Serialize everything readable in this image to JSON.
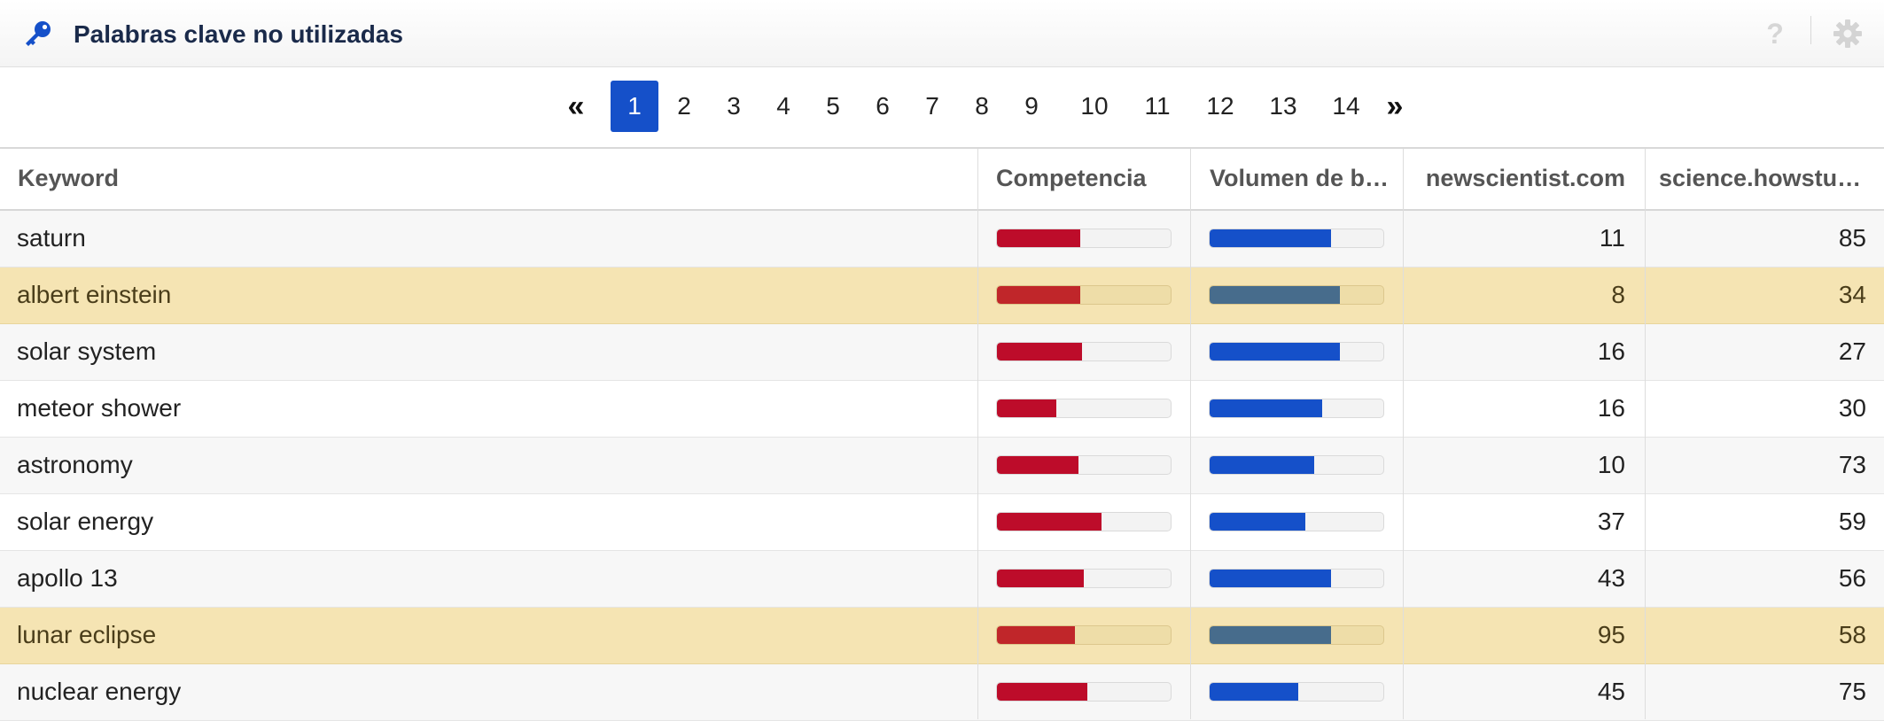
{
  "header": {
    "title": "Palabras clave no utilizadas",
    "help_glyph": "?",
    "icons": {
      "title": "key-icon",
      "help": "help-icon",
      "settings": "gear-icon"
    },
    "accent_color": "#1550c9"
  },
  "pagination": {
    "first_glyph": "«",
    "last_glyph": "»",
    "current": 1,
    "pages": [
      "1",
      "2",
      "3",
      "4",
      "5",
      "6",
      "7",
      "8",
      "9",
      "10",
      "11",
      "12",
      "13",
      "14"
    ]
  },
  "table": {
    "columns": [
      "Keyword",
      "Competencia",
      "Volumen de b…",
      "newscientist.com",
      "science.howstuf…"
    ],
    "bar_colors": {
      "competencia": "#bd0c2a",
      "volumen": "#1550c9"
    },
    "rows": [
      {
        "keyword": "saturn",
        "competencia": 0.48,
        "volumen": 0.7,
        "newscientist": "11",
        "howstuff": "85",
        "highlighted": false
      },
      {
        "keyword": "albert einstein",
        "competencia": 0.48,
        "volumen": 0.75,
        "newscientist": "8",
        "howstuff": "34",
        "highlighted": true
      },
      {
        "keyword": "solar system",
        "competencia": 0.49,
        "volumen": 0.75,
        "newscientist": "16",
        "howstuff": "27",
        "highlighted": false
      },
      {
        "keyword": "meteor shower",
        "competencia": 0.34,
        "volumen": 0.65,
        "newscientist": "16",
        "howstuff": "30",
        "highlighted": false
      },
      {
        "keyword": "astronomy",
        "competencia": 0.47,
        "volumen": 0.6,
        "newscientist": "10",
        "howstuff": "73",
        "highlighted": false
      },
      {
        "keyword": "solar energy",
        "competencia": 0.6,
        "volumen": 0.55,
        "newscientist": "37",
        "howstuff": "59",
        "highlighted": false
      },
      {
        "keyword": "apollo 13",
        "competencia": 0.5,
        "volumen": 0.7,
        "newscientist": "43",
        "howstuff": "56",
        "highlighted": false
      },
      {
        "keyword": "lunar eclipse",
        "competencia": 0.45,
        "volumen": 0.7,
        "newscientist": "95",
        "howstuff": "58",
        "highlighted": true
      },
      {
        "keyword": "nuclear energy",
        "competencia": 0.52,
        "volumen": 0.51,
        "newscientist": "45",
        "howstuff": "75",
        "highlighted": false
      }
    ]
  }
}
